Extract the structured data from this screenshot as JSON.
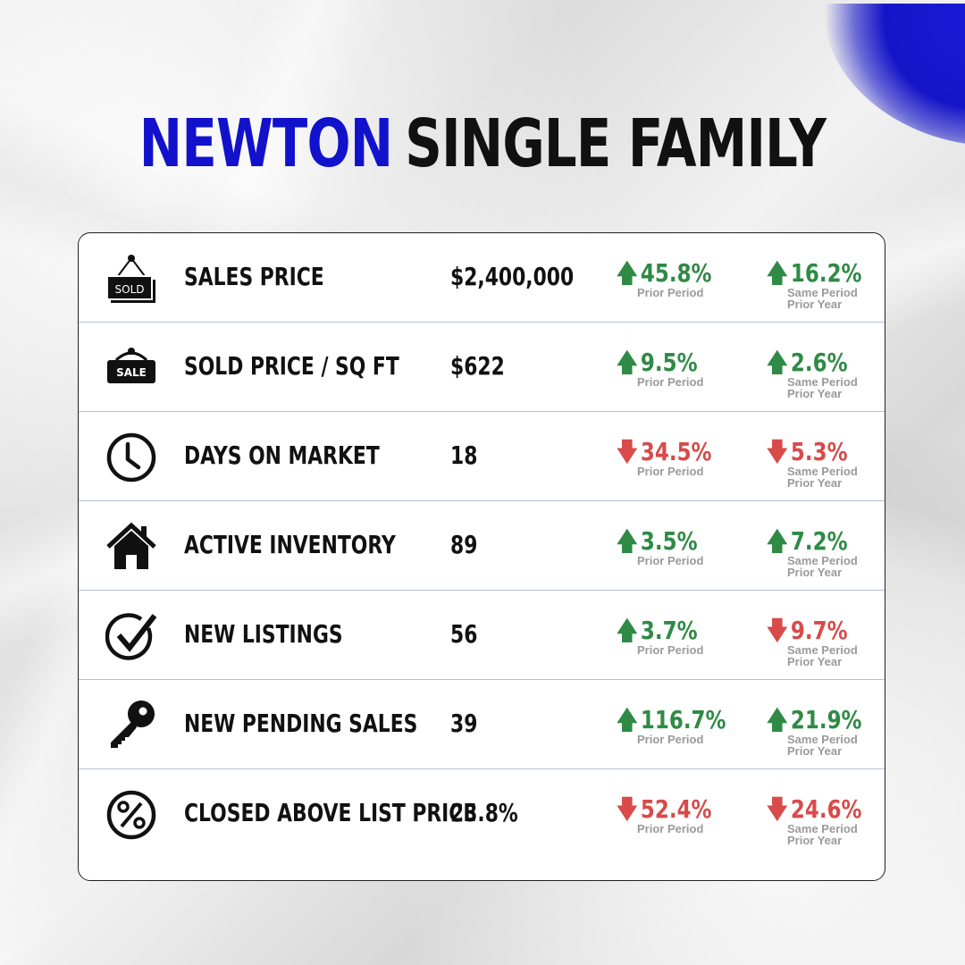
{
  "title": {
    "city": "NEWTON",
    "type": "SINGLE FAMILY"
  },
  "colors": {
    "accent": "#1212cc",
    "up": "#2f8a45",
    "down": "#d94a4a"
  },
  "prior_period_label": "Prior Period",
  "same_period_label_1": "Same Period",
  "same_period_label_2": "Prior Year",
  "rows": [
    {
      "icon": "sold-sign-icon",
      "label": "SALES PRICE",
      "value": "$2,400,000",
      "prior": {
        "dir": "up",
        "text": "45.8%"
      },
      "year": {
        "dir": "up",
        "text": "16.2%"
      }
    },
    {
      "icon": "sale-sign-icon",
      "label": "SOLD PRICE / SQ FT",
      "value": "$622",
      "prior": {
        "dir": "up",
        "text": "9.5%"
      },
      "year": {
        "dir": "up",
        "text": "2.6%"
      }
    },
    {
      "icon": "clock-icon",
      "label": "DAYS ON MARKET",
      "value": "18",
      "prior": {
        "dir": "down",
        "text": "34.5%"
      },
      "year": {
        "dir": "down",
        "text": "5.3%"
      }
    },
    {
      "icon": "house-icon",
      "label": "ACTIVE INVENTORY",
      "value": "89",
      "prior": {
        "dir": "up",
        "text": "3.5%"
      },
      "year": {
        "dir": "up",
        "text": "7.2%"
      }
    },
    {
      "icon": "checkmark-circle-icon",
      "label": "NEW LISTINGS",
      "value": "56",
      "prior": {
        "dir": "up",
        "text": "3.7%"
      },
      "year": {
        "dir": "down",
        "text": "9.7%"
      }
    },
    {
      "icon": "key-icon",
      "label": "NEW PENDING SALES",
      "value": "39",
      "prior": {
        "dir": "up",
        "text": "116.7%"
      },
      "year": {
        "dir": "up",
        "text": "21.9%"
      }
    },
    {
      "icon": "percent-circle-icon",
      "label": "CLOSED ABOVE LIST PRICE",
      "value": "23.8%",
      "prior": {
        "dir": "down",
        "text": "52.4%"
      },
      "year": {
        "dir": "down",
        "text": "24.6%"
      }
    }
  ],
  "icon_text": {
    "sold": "SOLD",
    "sale": "SALE"
  }
}
